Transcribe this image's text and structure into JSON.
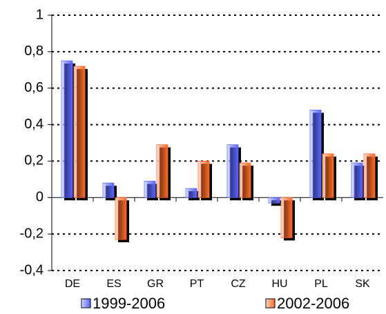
{
  "chart_data": {
    "type": "bar",
    "categories": [
      "DE",
      "ES",
      "GR",
      "PT",
      "CZ",
      "HU",
      "PL",
      "SK"
    ],
    "series": [
      {
        "name": "1999-2006",
        "color": "#5a66ff",
        "values": [
          0.75,
          0.08,
          0.09,
          0.05,
          0.29,
          -0.03,
          0.48,
          0.19
        ]
      },
      {
        "name": "2002-2006",
        "color": "#ff6a2a",
        "values": [
          0.72,
          -0.23,
          0.29,
          0.2,
          0.19,
          -0.22,
          0.24,
          0.24
        ]
      }
    ],
    "ylim": [
      -0.4,
      1
    ],
    "yticks": [
      {
        "value": -0.4,
        "label": "-0,4"
      },
      {
        "value": -0.2,
        "label": "-0,2"
      },
      0,
      {
        "value": 0.2,
        "label": "0,2"
      },
      {
        "value": 0.4,
        "label": "0,4"
      },
      {
        "value": 0.6,
        "label": "0,6"
      },
      {
        "value": 0.8,
        "label": "0,8"
      },
      1
    ],
    "grid": true,
    "legend": "bottom"
  }
}
